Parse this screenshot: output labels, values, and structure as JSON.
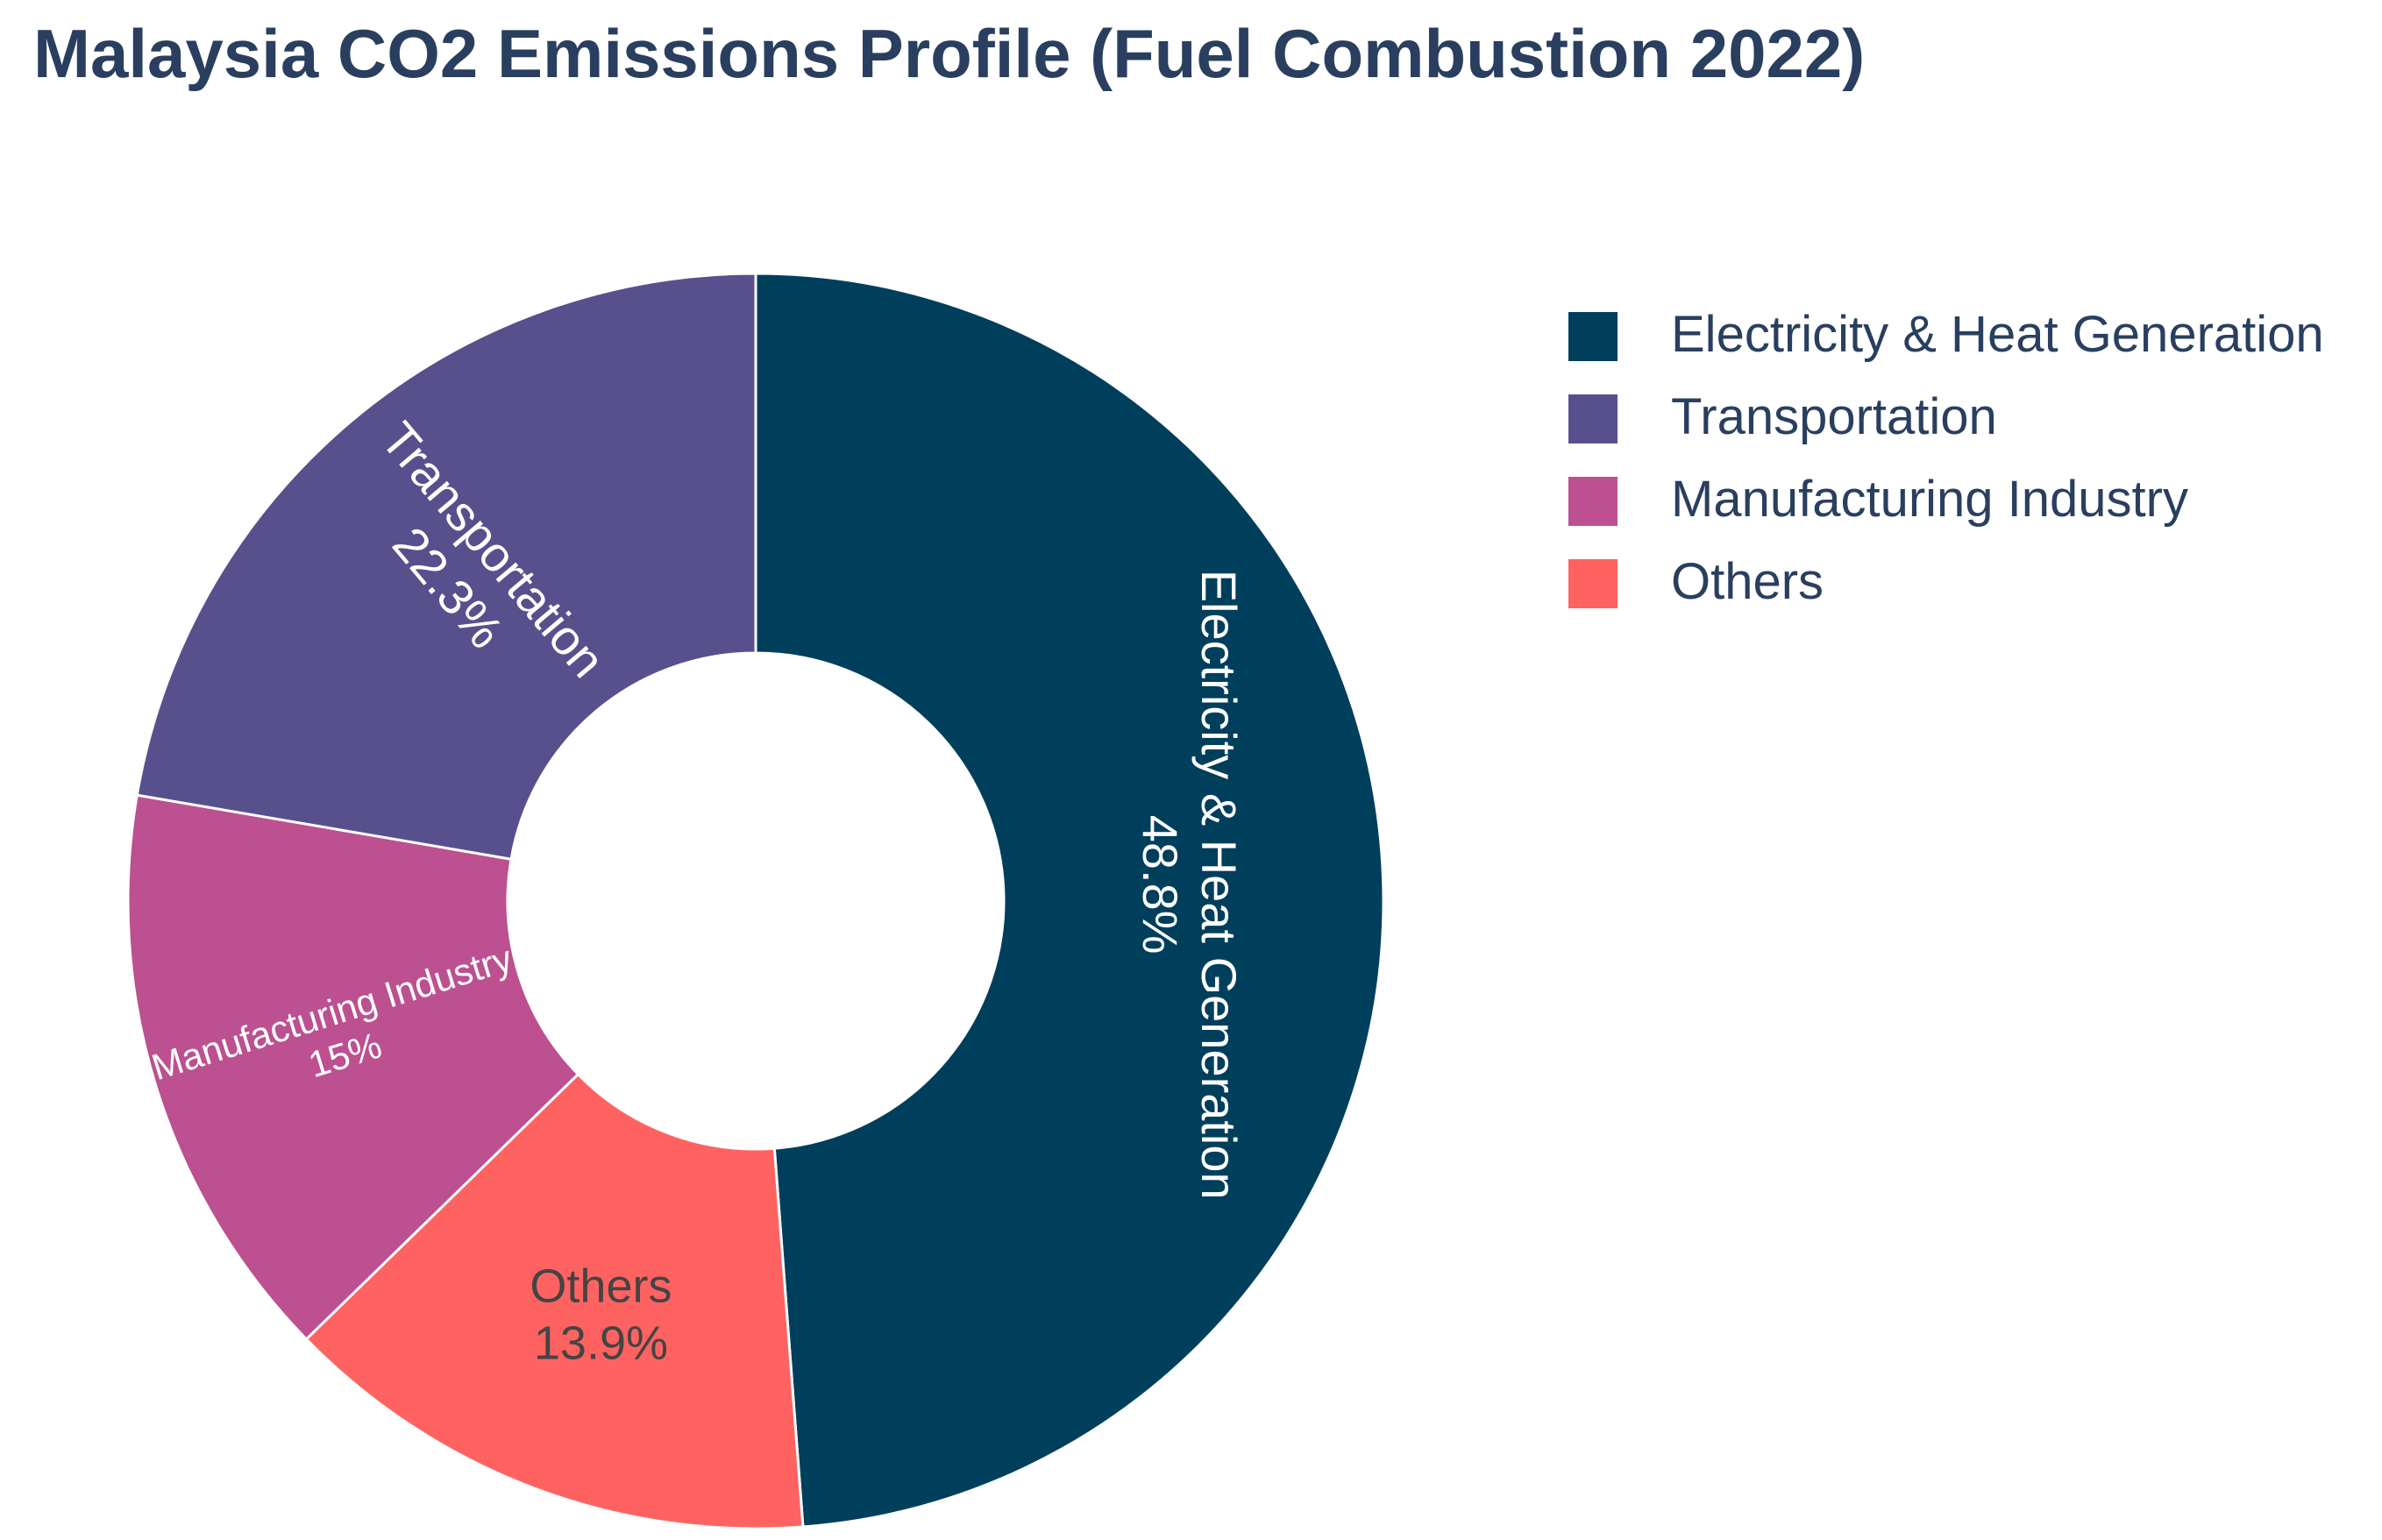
{
  "chart_data": {
    "type": "pie",
    "title": "Malaysia CO2 Emissions Profile (Fuel Combustion 2022)",
    "hole": true,
    "legend_position": "top-right",
    "slices": [
      {
        "label": "Electricity & Heat Generation",
        "value": 48.8,
        "value_label": "48.8%",
        "color": "#003f5c",
        "text_color": "#ffffff"
      },
      {
        "label": "Others",
        "value": 13.9,
        "value_label": "13.9%",
        "color": "#ff6361",
        "text_color": "#444444"
      },
      {
        "label": "Manufacturing Industry",
        "value": 15,
        "value_label": "15%",
        "color": "#bc5090",
        "text_color": "#ffffff"
      },
      {
        "label": "Transportation",
        "value": 22.3,
        "value_label": "22.3%",
        "color": "#58508d",
        "text_color": "#ffffff"
      }
    ],
    "legend": [
      {
        "label": "Electricity & Heat Generation",
        "color": "#003f5c"
      },
      {
        "label": "Transportation",
        "color": "#58508d"
      },
      {
        "label": "Manufacturing Industry",
        "color": "#bc5090"
      },
      {
        "label": "Others",
        "color": "#ff6361"
      }
    ]
  },
  "colors": {
    "title": "#2a3f5f",
    "legend_text": "#2a3f5f",
    "slice_border": "#ffffff"
  }
}
